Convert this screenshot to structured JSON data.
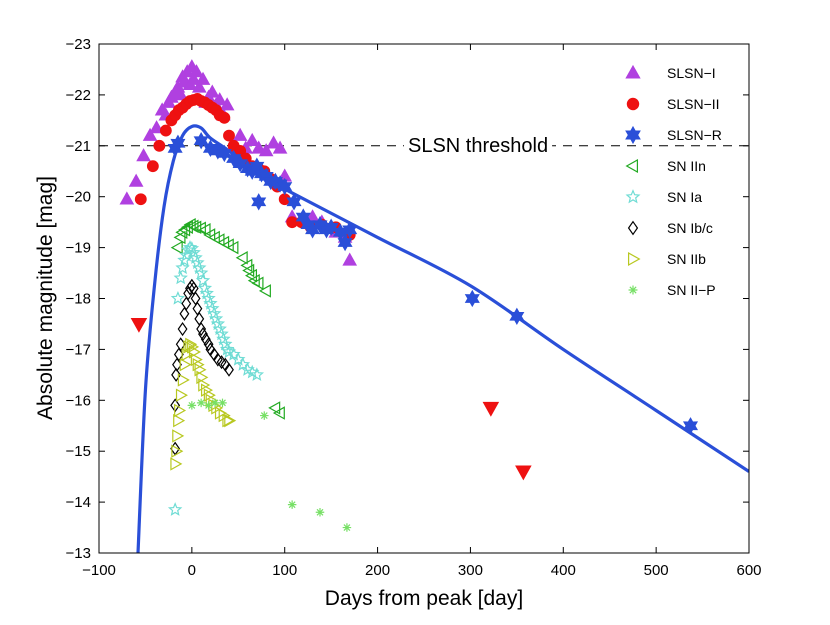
{
  "chart_data": {
    "type": "scatter",
    "title": "",
    "xlabel": "Days from peak [day]",
    "ylabel": "Absolute magnitude [mag]",
    "xlim": [
      -100,
      600
    ],
    "ylim": [
      -13,
      -23
    ],
    "y_inverted": true,
    "grid": false,
    "legend_position": "top-right",
    "x_ticks": [
      -100,
      0,
      100,
      200,
      300,
      400,
      500,
      600
    ],
    "y_ticks": [
      -23,
      -22,
      -21,
      -20,
      -19,
      -18,
      -17,
      -16,
      -15,
      -14,
      -13
    ],
    "x_tick_labels": [
      "−100",
      "0",
      "100",
      "200",
      "300",
      "400",
      "500",
      "600"
    ],
    "y_tick_labels": [
      "−23",
      "−22",
      "−21",
      "−20",
      "−19",
      "−18",
      "−17",
      "−16",
      "−15",
      "−14",
      "−13"
    ],
    "threshold": {
      "label": "SLSN threshold",
      "value": -21,
      "style": "dashed",
      "color": "#000000"
    },
    "model_curve": {
      "name": "SLSN-R model",
      "color": "#2a4fd8",
      "points": [
        [
          -58,
          -13.0
        ],
        [
          -50,
          -16.2
        ],
        [
          -40,
          -18.3
        ],
        [
          -30,
          -19.8
        ],
        [
          -20,
          -20.7
        ],
        [
          -10,
          -21.2
        ],
        [
          0,
          -21.38
        ],
        [
          10,
          -21.35
        ],
        [
          20,
          -21.15
        ],
        [
          40,
          -20.9
        ],
        [
          60,
          -20.6
        ],
        [
          80,
          -20.35
        ],
        [
          100,
          -20.15
        ],
        [
          200,
          -19.2
        ],
        [
          300,
          -18.25
        ],
        [
          400,
          -17.0
        ],
        [
          500,
          -15.8
        ],
        [
          600,
          -14.6
        ]
      ]
    },
    "series": [
      {
        "name": "SLSN−I",
        "marker": "triangle-up",
        "color": "#b040e0",
        "filled": true,
        "points": [
          [
            -70,
            -19.95
          ],
          [
            -60,
            -20.3
          ],
          [
            -52,
            -20.8
          ],
          [
            -45,
            -21.2
          ],
          [
            -38,
            -21.35
          ],
          [
            -32,
            -21.7
          ],
          [
            -28,
            -21.6
          ],
          [
            -25,
            -21.85
          ],
          [
            -22,
            -21.95
          ],
          [
            -18,
            -22.05
          ],
          [
            -15,
            -22.15
          ],
          [
            -12,
            -22.0
          ],
          [
            -10,
            -22.35
          ],
          [
            -8,
            -22.25
          ],
          [
            -5,
            -22.45
          ],
          [
            -2,
            -22.2
          ],
          [
            0,
            -22.55
          ],
          [
            2,
            -22.3
          ],
          [
            5,
            -22.45
          ],
          [
            8,
            -22.15
          ],
          [
            12,
            -22.3
          ],
          [
            15,
            -21.85
          ],
          [
            18,
            -21.95
          ],
          [
            22,
            -22.05
          ],
          [
            26,
            -21.8
          ],
          [
            30,
            -21.9
          ],
          [
            34,
            -21.6
          ],
          [
            38,
            -21.8
          ],
          [
            45,
            -21.0
          ],
          [
            52,
            -21.2
          ],
          [
            58,
            -20.95
          ],
          [
            65,
            -21.1
          ],
          [
            72,
            -20.95
          ],
          [
            80,
            -20.9
          ],
          [
            88,
            -21.05
          ],
          [
            95,
            -20.95
          ],
          [
            100,
            -20.4
          ],
          [
            108,
            -19.6
          ],
          [
            120,
            -19.55
          ],
          [
            130,
            -19.6
          ],
          [
            140,
            -19.5
          ],
          [
            155,
            -19.3
          ],
          [
            165,
            -19.2
          ],
          [
            170,
            -18.75
          ]
        ]
      },
      {
        "name": "SLSN−II",
        "marker": "circle",
        "color": "#ee1111",
        "filled": true,
        "points": [
          [
            -55,
            -19.95
          ],
          [
            -42,
            -20.6
          ],
          [
            -35,
            -21.0
          ],
          [
            -28,
            -21.3
          ],
          [
            -22,
            -21.5
          ],
          [
            -18,
            -21.6
          ],
          [
            -14,
            -21.7
          ],
          [
            -10,
            -21.75
          ],
          [
            -6,
            -21.82
          ],
          [
            -2,
            -21.88
          ],
          [
            2,
            -21.9
          ],
          [
            6,
            -21.92
          ],
          [
            10,
            -21.88
          ],
          [
            14,
            -21.85
          ],
          [
            18,
            -21.8
          ],
          [
            22,
            -21.75
          ],
          [
            26,
            -21.7
          ],
          [
            30,
            -21.6
          ],
          [
            35,
            -21.55
          ],
          [
            40,
            -21.2
          ],
          [
            45,
            -21.0
          ],
          [
            52,
            -20.9
          ],
          [
            58,
            -20.75
          ],
          [
            65,
            -20.6
          ],
          [
            72,
            -20.55
          ],
          [
            78,
            -20.5
          ],
          [
            85,
            -20.35
          ],
          [
            92,
            -20.2
          ],
          [
            100,
            -19.95
          ],
          [
            108,
            -19.5
          ],
          [
            118,
            -19.5
          ],
          [
            128,
            -19.4
          ],
          [
            140,
            -19.45
          ],
          [
            155,
            -19.4
          ],
          [
            170,
            -19.25
          ]
        ]
      },
      {
        "name": "SLSN−R",
        "marker": "star6",
        "color": "#2a4fd8",
        "filled": true,
        "points": [
          [
            -18,
            -20.95
          ],
          [
            -15,
            -21.05
          ],
          [
            10,
            -21.1
          ],
          [
            20,
            -20.95
          ],
          [
            28,
            -20.9
          ],
          [
            35,
            -20.85
          ],
          [
            45,
            -20.75
          ],
          [
            52,
            -20.65
          ],
          [
            60,
            -20.55
          ],
          [
            65,
            -20.5
          ],
          [
            70,
            -20.6
          ],
          [
            75,
            -20.45
          ],
          [
            80,
            -20.4
          ],
          [
            85,
            -20.3
          ],
          [
            90,
            -20.3
          ],
          [
            95,
            -20.25
          ],
          [
            100,
            -20.2
          ],
          [
            110,
            -19.9
          ],
          [
            120,
            -19.6
          ],
          [
            125,
            -19.45
          ],
          [
            130,
            -19.35
          ],
          [
            138,
            -19.45
          ],
          [
            145,
            -19.35
          ],
          [
            150,
            -19.4
          ],
          [
            160,
            -19.3
          ],
          [
            165,
            -19.1
          ],
          [
            170,
            -19.35
          ],
          [
            72,
            -19.9
          ],
          [
            302,
            -18.0
          ],
          [
            350,
            -17.65
          ],
          [
            537,
            -15.5
          ]
        ]
      },
      {
        "name": "SN IIn",
        "marker": "triangle-left",
        "color": "#22aa22",
        "filled": false,
        "points": [
          [
            -15,
            -19.0
          ],
          [
            -12,
            -19.2
          ],
          [
            -10,
            -19.3
          ],
          [
            -7,
            -19.35
          ],
          [
            -4,
            -19.4
          ],
          [
            -1,
            -19.45
          ],
          [
            2,
            -19.42
          ],
          [
            5,
            -19.4
          ],
          [
            10,
            -19.38
          ],
          [
            15,
            -19.35
          ],
          [
            20,
            -19.25
          ],
          [
            25,
            -19.2
          ],
          [
            30,
            -19.15
          ],
          [
            35,
            -19.1
          ],
          [
            40,
            -19.05
          ],
          [
            45,
            -19.0
          ],
          [
            55,
            -18.8
          ],
          [
            60,
            -18.65
          ],
          [
            62,
            -18.55
          ],
          [
            65,
            -18.45
          ],
          [
            68,
            -18.35
          ],
          [
            72,
            -18.3
          ],
          [
            80,
            -18.15
          ],
          [
            90,
            -15.85
          ],
          [
            95,
            -15.75
          ]
        ]
      },
      {
        "name": "SN Ia",
        "marker": "star5",
        "color": "#6fdcd4",
        "filled": false,
        "points": [
          [
            -18,
            -13.85
          ],
          [
            -15,
            -18.0
          ],
          [
            -12,
            -18.4
          ],
          [
            -10,
            -18.6
          ],
          [
            -8,
            -18.75
          ],
          [
            -6,
            -18.85
          ],
          [
            -4,
            -18.95
          ],
          [
            -2,
            -19.0
          ],
          [
            0,
            -18.98
          ],
          [
            2,
            -18.9
          ],
          [
            4,
            -18.8
          ],
          [
            6,
            -18.7
          ],
          [
            8,
            -18.6
          ],
          [
            10,
            -18.5
          ],
          [
            12,
            -18.35
          ],
          [
            14,
            -18.2
          ],
          [
            16,
            -18.1
          ],
          [
            18,
            -18.0
          ],
          [
            20,
            -17.9
          ],
          [
            22,
            -17.8
          ],
          [
            24,
            -17.7
          ],
          [
            26,
            -17.6
          ],
          [
            28,
            -17.5
          ],
          [
            30,
            -17.4
          ],
          [
            32,
            -17.3
          ],
          [
            34,
            -17.2
          ],
          [
            36,
            -17.1
          ],
          [
            38,
            -17.0
          ],
          [
            40,
            -16.95
          ],
          [
            45,
            -16.9
          ],
          [
            50,
            -16.8
          ],
          [
            55,
            -16.7
          ],
          [
            60,
            -16.6
          ],
          [
            65,
            -16.55
          ],
          [
            70,
            -16.5
          ]
        ]
      },
      {
        "name": "SN Ib/c",
        "marker": "diamond",
        "color": "#000000",
        "filled": false,
        "points": [
          [
            -18,
            -15.05
          ],
          [
            -18,
            -15.9
          ],
          [
            -17,
            -16.5
          ],
          [
            -16,
            -16.7
          ],
          [
            -14,
            -16.9
          ],
          [
            -12,
            -17.1
          ],
          [
            -10,
            -17.4
          ],
          [
            -8,
            -17.7
          ],
          [
            -6,
            -17.9
          ],
          [
            -4,
            -18.1
          ],
          [
            -2,
            -18.2
          ],
          [
            0,
            -18.25
          ],
          [
            2,
            -18.2
          ],
          [
            4,
            -18.0
          ],
          [
            6,
            -17.8
          ],
          [
            8,
            -17.6
          ],
          [
            10,
            -17.4
          ],
          [
            12,
            -17.3
          ],
          [
            15,
            -17.2
          ],
          [
            18,
            -17.1
          ],
          [
            20,
            -17.0
          ],
          [
            24,
            -16.9
          ],
          [
            28,
            -16.8
          ],
          [
            32,
            -16.75
          ],
          [
            36,
            -16.7
          ],
          [
            40,
            -16.6
          ]
        ]
      },
      {
        "name": "SN IIb",
        "marker": "triangle-right",
        "color": "#b8c820",
        "filled": false,
        "points": [
          [
            -18,
            -14.75
          ],
          [
            -17,
            -15.0
          ],
          [
            -16,
            -15.3
          ],
          [
            -15,
            -15.6
          ],
          [
            -14,
            -15.8
          ],
          [
            -12,
            -16.1
          ],
          [
            -10,
            -16.4
          ],
          [
            -8,
            -16.7
          ],
          [
            -6,
            -16.9
          ],
          [
            -4,
            -17.05
          ],
          [
            -2,
            -17.1
          ],
          [
            0,
            -17.05
          ],
          [
            2,
            -16.95
          ],
          [
            4,
            -16.8
          ],
          [
            6,
            -16.7
          ],
          [
            8,
            -16.6
          ],
          [
            10,
            -16.45
          ],
          [
            12,
            -16.3
          ],
          [
            15,
            -16.2
          ],
          [
            18,
            -16.1
          ],
          [
            20,
            -16.0
          ],
          [
            23,
            -15.9
          ],
          [
            26,
            -15.85
          ],
          [
            30,
            -15.75
          ],
          [
            34,
            -15.7
          ],
          [
            38,
            -15.6
          ],
          [
            40,
            -15.6
          ]
        ]
      },
      {
        "name": "SN II−P",
        "marker": "asterisk",
        "color": "#77e066",
        "filled": false,
        "points": [
          [
            0,
            -15.9
          ],
          [
            10,
            -15.95
          ],
          [
            18,
            -15.9
          ],
          [
            25,
            -15.95
          ],
          [
            33,
            -15.95
          ],
          [
            78,
            -15.7
          ],
          [
            108,
            -13.95
          ],
          [
            138,
            -13.8
          ],
          [
            167,
            -13.5
          ]
        ]
      },
      {
        "name": "upper limits",
        "marker": "triangle-down",
        "color": "#ee1111",
        "filled": true,
        "in_legend": false,
        "points": [
          [
            -57,
            -17.5
          ],
          [
            322,
            -15.85
          ],
          [
            357,
            -14.6
          ]
        ]
      }
    ]
  }
}
